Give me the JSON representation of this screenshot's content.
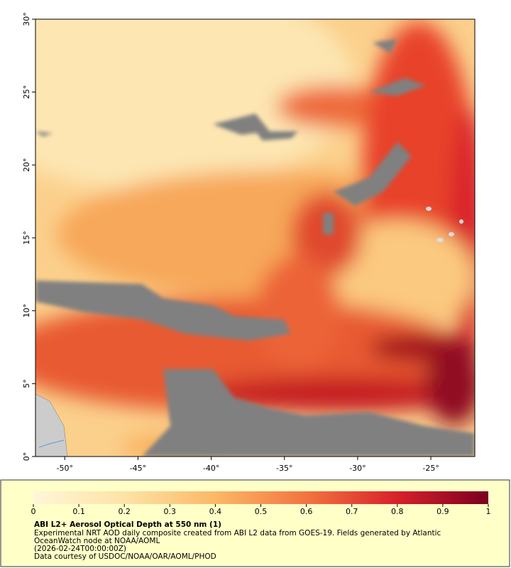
{
  "map": {
    "xlim": [
      -52,
      -22
    ],
    "ylim": [
      0,
      30
    ],
    "xticks": [
      {
        "value": -50,
        "label": "-50°"
      },
      {
        "value": -45,
        "label": "-45°"
      },
      {
        "value": -40,
        "label": "-40°"
      },
      {
        "value": -35,
        "label": "-35°"
      },
      {
        "value": -30,
        "label": "-30°"
      },
      {
        "value": -25,
        "label": "-25°"
      }
    ],
    "yticks": [
      {
        "value": 0,
        "label": "0°"
      },
      {
        "value": 5,
        "label": "5°"
      },
      {
        "value": 10,
        "label": "10°"
      },
      {
        "value": 15,
        "label": "15°"
      },
      {
        "value": 20,
        "label": "20°"
      },
      {
        "value": 25,
        "label": "25°"
      },
      {
        "value": 30,
        "label": "30°"
      }
    ]
  },
  "colorbar": {
    "lim": [
      0,
      1
    ],
    "ticks": [
      0,
      0.1,
      0.2,
      0.3,
      0.4,
      0.5,
      0.6,
      0.7,
      0.8,
      0.9,
      1
    ]
  },
  "caption": {
    "title": "ABI L2+ Aerosol Optical Depth at 550 nm (1)",
    "lines": [
      "Experimental NRT AOD daily composite created from ABI L2 data from GOES-19. Fields generated by Atlantic",
      "OceanWatch node at NOAA/AOML",
      "(2026-02-24T00:00:00Z)",
      "Data courtesy of USDOC/NOAA/OAR/AOML/PHOD"
    ]
  }
}
